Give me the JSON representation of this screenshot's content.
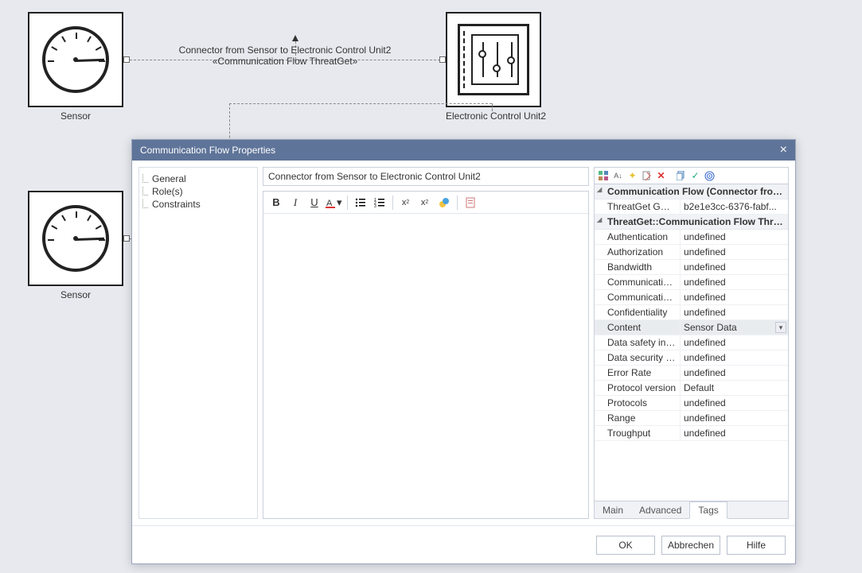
{
  "canvas": {
    "node1": {
      "label": "Sensor"
    },
    "node2": {
      "label": "Sensor"
    },
    "node3": {
      "label": "Electronic Control Unit2"
    },
    "edge": {
      "line1": "Connector from Sensor to Electronic Control Unit2",
      "line2": "«Communication Flow ThreatGet»"
    }
  },
  "dialog": {
    "title": "Communication Flow Properties",
    "nav": {
      "general": "General",
      "roles": "Role(s)",
      "constraints": "Constraints"
    },
    "title_field": "Connector from Sensor to Electronic Control Unit2",
    "toolbar": {
      "bold": "B",
      "italic": "I",
      "underline": "U"
    },
    "props": {
      "group1": "Communication Flow (Connector from ...",
      "guid_k": "ThreatGet GUID",
      "guid_v": "b2e1e3cc-6376-fabf...",
      "group2": "ThreatGet::Communication Flow Threat...",
      "rows": [
        {
          "k": "Authentication",
          "v": "undefined"
        },
        {
          "k": "Authorization",
          "v": "undefined"
        },
        {
          "k": "Bandwidth",
          "v": "undefined"
        },
        {
          "k": "Communication ...",
          "v": "undefined"
        },
        {
          "k": "Communication ...",
          "v": "undefined"
        },
        {
          "k": "Confidentiality",
          "v": "undefined"
        },
        {
          "k": "Content",
          "v": "Sensor Data",
          "sel": true,
          "dd": true
        },
        {
          "k": "Data safety inte...",
          "v": "undefined"
        },
        {
          "k": "Data security int...",
          "v": "undefined"
        },
        {
          "k": "Error Rate",
          "v": "undefined"
        },
        {
          "k": "Protocol version",
          "v": "Default"
        },
        {
          "k": "Protocols",
          "v": "undefined"
        },
        {
          "k": "Range",
          "v": "undefined"
        },
        {
          "k": "Troughput",
          "v": "undefined"
        }
      ]
    },
    "tabs": {
      "main": "Main",
      "advanced": "Advanced",
      "tags": "Tags"
    },
    "buttons": {
      "ok": "OK",
      "cancel": "Abbrechen",
      "help": "Hilfe"
    }
  },
  "colors": {
    "bg": "#e7e9ef",
    "titlebar": "#5f7499",
    "border": "#c9cfdb"
  }
}
